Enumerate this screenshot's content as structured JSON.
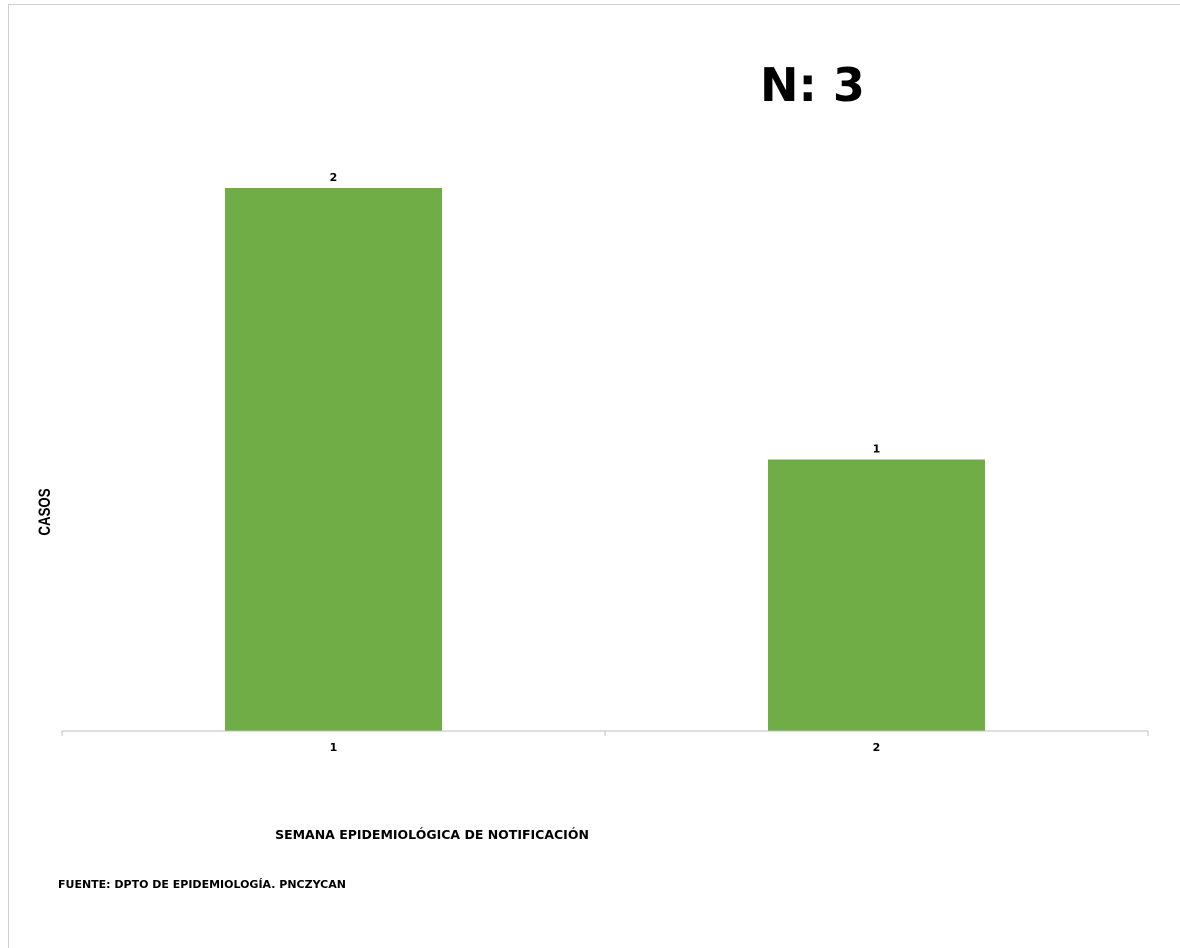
{
  "header": {
    "n_label": "N: 3"
  },
  "footer": {
    "source": "FUENTE: DPTO DE EPIDEMIOLOGÍA. PNCZYCAN"
  },
  "chart_data": {
    "type": "bar",
    "categories": [
      "1",
      "2"
    ],
    "values": [
      2,
      1
    ],
    "data_labels": [
      "2",
      "1"
    ],
    "title": "",
    "xlabel": "SEMANA EPIDEMIOLÓGICA  DE NOTIFICACIÓN",
    "ylabel": "CASOS",
    "ylim": [
      0,
      2
    ],
    "grid": false,
    "legend": "none",
    "bar_color": "#70AD47",
    "axis_color": "#bfbfbf"
  }
}
